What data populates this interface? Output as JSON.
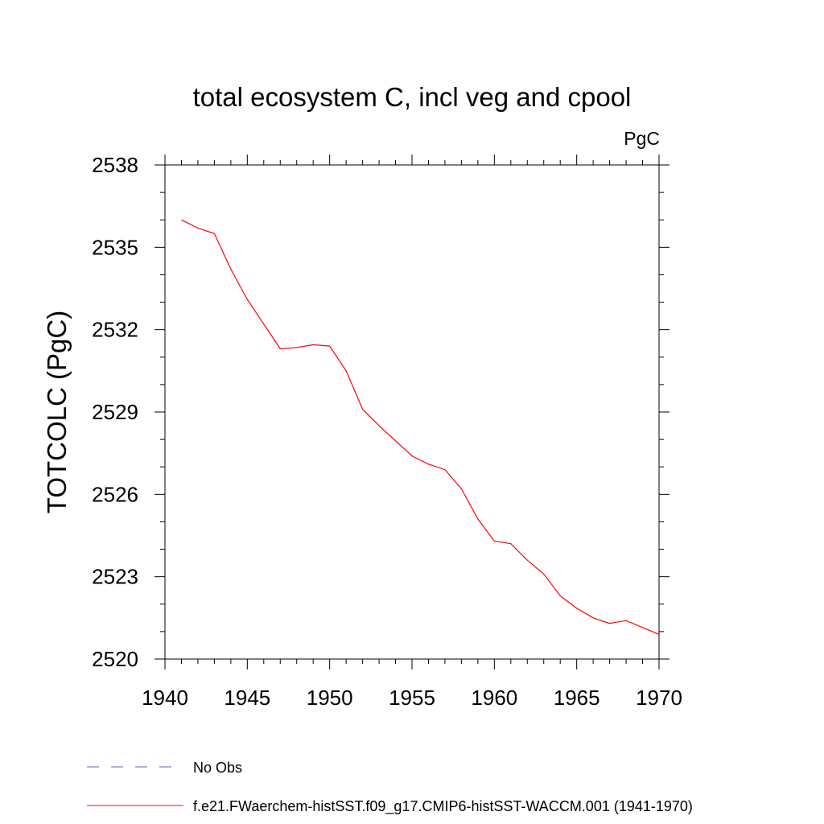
{
  "chart_data": {
    "type": "line",
    "title": "total ecosystem C, incl veg and cpool",
    "units": "PgC",
    "ylabel": "TOTCOLC  (PgC)",
    "xlabel": "",
    "xlim": [
      1940,
      1970
    ],
    "ylim": [
      2520,
      2538
    ],
    "x_ticks": [
      1940,
      1945,
      1950,
      1955,
      1960,
      1965,
      1970
    ],
    "y_ticks": [
      2520,
      2523,
      2526,
      2529,
      2532,
      2535,
      2538
    ],
    "x_tick_labels": [
      "1940",
      "1945",
      "1950",
      "1955",
      "1960",
      "1965",
      "1970"
    ],
    "y_tick_labels": [
      "2520",
      "2523",
      "2526",
      "2529",
      "2532",
      "2535",
      "2538"
    ],
    "grid": false,
    "legend_position": "bottom",
    "series": [
      {
        "name": "f.e21.FWaerchem-histSST.f09_g17.CMIP6-histSST-WACCM.001 (1941-1970)",
        "color": "#ff0000",
        "style": "solid",
        "x": [
          1941,
          1942,
          1943,
          1944,
          1945,
          1946,
          1947,
          1948,
          1949,
          1950,
          1951,
          1952,
          1953,
          1954,
          1955,
          1956,
          1957,
          1958,
          1959,
          1960,
          1961,
          1962,
          1963,
          1964,
          1965,
          1966,
          1967,
          1968,
          1969,
          1970
        ],
        "values": [
          2536.0,
          2535.7,
          2535.5,
          2534.2,
          2533.1,
          2532.2,
          2531.3,
          2531.35,
          2531.45,
          2531.4,
          2530.5,
          2529.1,
          2528.5,
          2527.95,
          2527.4,
          2527.1,
          2526.9,
          2526.2,
          2525.1,
          2524.3,
          2524.2,
          2523.6,
          2523.1,
          2522.3,
          2521.85,
          2521.5,
          2521.3,
          2521.4,
          2521.15,
          2520.9
        ]
      }
    ],
    "legend": [
      {
        "label": "No Obs",
        "color": "#6b5fbf",
        "style": "dashed"
      },
      {
        "label": "f.e21.FWaerchem-histSST.f09_g17.CMIP6-histSST-WACCM.001 (1941-1970)",
        "color": "#ff0000",
        "style": "solid"
      }
    ]
  }
}
